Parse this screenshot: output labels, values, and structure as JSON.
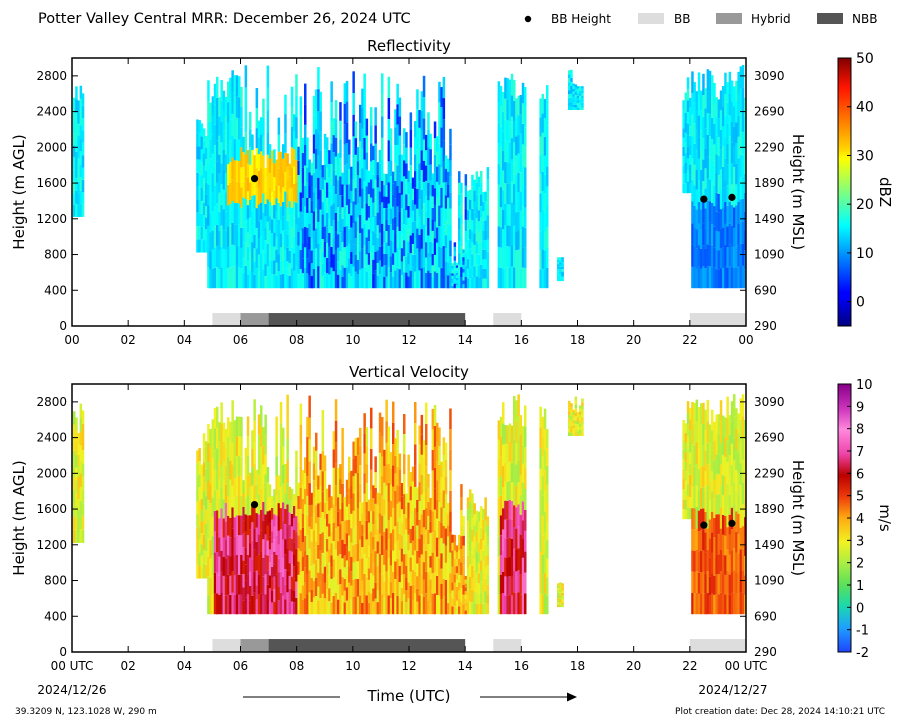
{
  "title": "Potter Valley Central MRR:  December 26, 2024 UTC",
  "legend": [
    {
      "label": "BB Height",
      "kind": "dot",
      "color": "#000000"
    },
    {
      "label": "BB",
      "kind": "box",
      "color": "#dddddd"
    },
    {
      "label": "Hybrid",
      "kind": "box",
      "color": "#999999"
    },
    {
      "label": "NBB",
      "kind": "box",
      "color": "#555555"
    }
  ],
  "x_axis_label": "Time (UTC)",
  "x_tick_labels": [
    "00",
    "02",
    "04",
    "06",
    "08",
    "10",
    "12",
    "14",
    "16",
    "18",
    "20",
    "22",
    "00"
  ],
  "x_tick_labels_bottom": [
    "00 UTC",
    "02",
    "04",
    "06",
    "08",
    "10",
    "12",
    "14",
    "16",
    "18",
    "20",
    "22",
    "00 UTC"
  ],
  "start_date": "2024/12/26",
  "end_date": "2024/12/27",
  "location": "39.3209 N, 123.1028 W, 290 m",
  "creation_date": "Plot creation date: Dec 28, 2024 14:10:21 UTC",
  "chart_data": [
    {
      "type": "heatmap",
      "title": "Reflectivity",
      "xlabel": "",
      "ylabel": "Height (m AGL)",
      "ylabel_right": "Height (m MSL)",
      "xlim": [
        0,
        24
      ],
      "ylim": [
        0,
        3000
      ],
      "y_ticks": [
        0,
        400,
        800,
        1200,
        1600,
        2000,
        2400,
        2800
      ],
      "y_ticks_right": [
        290,
        690,
        1090,
        1490,
        1890,
        2290,
        2690,
        3090
      ],
      "colorbar": {
        "label": "dBZ",
        "min": -5,
        "max": 50,
        "ticks": [
          50,
          40,
          30,
          20,
          10,
          0
        ]
      },
      "bb_height_points": [
        [
          6.5,
          1650
        ],
        [
          22.5,
          1420
        ],
        [
          23.5,
          1440
        ]
      ],
      "bb_types": [
        {
          "type": "BB",
          "start": 5.0,
          "end": 6.0
        },
        {
          "type": "Hybrid",
          "start": 6.0,
          "end": 7.0
        },
        {
          "type": "NBB",
          "start": 7.0,
          "end": 14.0
        },
        {
          "type": "BB",
          "start": 15.0,
          "end": 16.0
        },
        {
          "type": "BB",
          "start": 22.0,
          "end": 24.0
        }
      ]
    },
    {
      "type": "heatmap",
      "title": "Vertical Velocity",
      "xlabel": "Time (UTC)",
      "ylabel": "Height (m AGL)",
      "ylabel_right": "Height (m MSL)",
      "xlim": [
        0,
        24
      ],
      "ylim": [
        0,
        3000
      ],
      "y_ticks": [
        0,
        400,
        800,
        1200,
        1600,
        2000,
        2400,
        2800
      ],
      "y_ticks_right": [
        290,
        690,
        1090,
        1490,
        1890,
        2290,
        2690,
        3090
      ],
      "colorbar": {
        "label": "m/s",
        "min": -2,
        "max": 10,
        "ticks": [
          10,
          9,
          8,
          7,
          6,
          5,
          4,
          3,
          2,
          1,
          0,
          -1,
          -2
        ]
      },
      "bb_height_points": [
        [
          6.5,
          1650
        ],
        [
          22.5,
          1420
        ],
        [
          23.5,
          1440
        ]
      ],
      "bb_types": [
        {
          "type": "BB",
          "start": 5.0,
          "end": 6.0
        },
        {
          "type": "Hybrid",
          "start": 6.0,
          "end": 7.0
        },
        {
          "type": "NBB",
          "start": 7.0,
          "end": 14.0
        },
        {
          "type": "BB",
          "start": 15.0,
          "end": 16.0
        },
        {
          "type": "BB",
          "start": 22.0,
          "end": 24.0
        }
      ]
    }
  ]
}
